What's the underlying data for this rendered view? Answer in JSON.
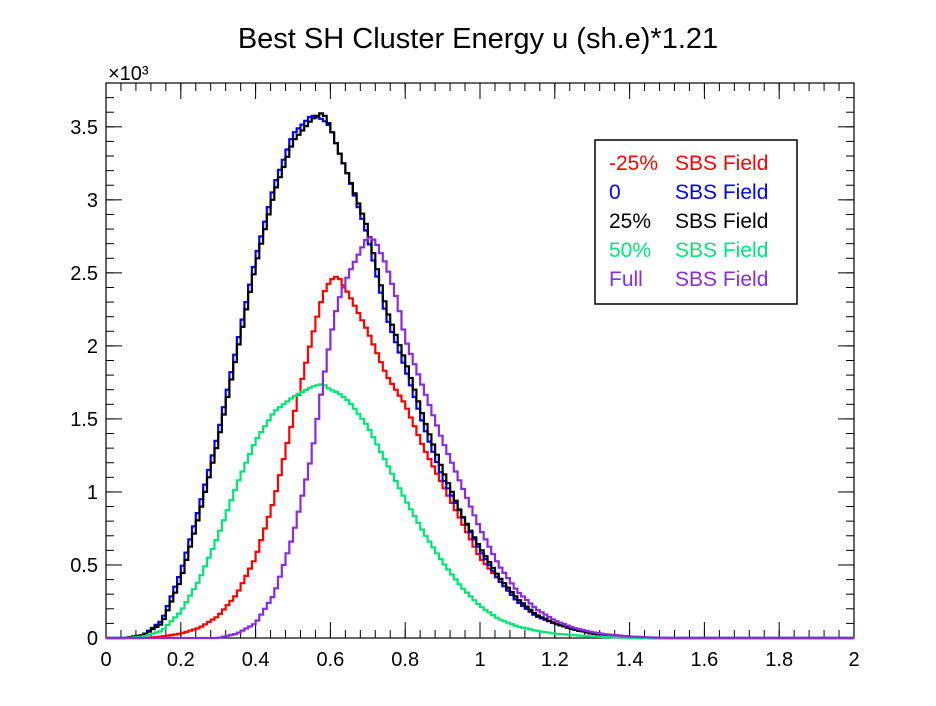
{
  "chart_data": {
    "type": "line",
    "title": "Best SH Cluster Energy u (sh.e)*1.21",
    "xlabel": "",
    "ylabel": "",
    "y_exponent_label": "×10³",
    "xlim": [
      0,
      2
    ],
    "ylim": [
      0,
      3.8
    ],
    "x_ticks": [
      "0",
      "0.2",
      "0.4",
      "0.6",
      "0.8",
      "1",
      "1.2",
      "1.4",
      "1.6",
      "1.8",
      "2"
    ],
    "y_ticks": [
      "0",
      "0.5",
      "1",
      "1.5",
      "2",
      "2.5",
      "3",
      "3.5"
    ],
    "grid": false,
    "legend_position": "top-right",
    "legend": [
      {
        "prefix": "-25%",
        "suffix": "SBS Field",
        "color": "#ff0000"
      },
      {
        "prefix": "0",
        "suffix": "SBS Field",
        "color": "#0000ff"
      },
      {
        "prefix": "25%",
        "suffix": "SBS Field",
        "color": "#000000"
      },
      {
        "prefix": "50%",
        "suffix": "SBS Field",
        "color": "#00e676"
      },
      {
        "prefix": "Full",
        "suffix": "SBS Field",
        "color": "#8a2be2"
      }
    ],
    "series": [
      {
        "name": "-25% SBS Field",
        "color": "#ff0000",
        "x": [
          0.1,
          0.15,
          0.2,
          0.25,
          0.3,
          0.35,
          0.4,
          0.45,
          0.5,
          0.55,
          0.58,
          0.6,
          0.62,
          0.65,
          0.7,
          0.75,
          0.8,
          0.85,
          0.9,
          0.95,
          1.0,
          1.05,
          1.1,
          1.15,
          1.2,
          1.25,
          1.3,
          1.35,
          1.4,
          1.45
        ],
        "y": [
          0.0,
          0.01,
          0.03,
          0.07,
          0.15,
          0.3,
          0.55,
          0.95,
          1.5,
          2.05,
          2.35,
          2.45,
          2.48,
          2.35,
          2.1,
          1.8,
          1.6,
          1.3,
          1.05,
          0.8,
          0.55,
          0.4,
          0.25,
          0.15,
          0.1,
          0.06,
          0.03,
          0.02,
          0.01,
          0.0
        ]
      },
      {
        "name": "0 SBS Field",
        "color": "#0000ff",
        "x": [
          0.05,
          0.1,
          0.15,
          0.2,
          0.25,
          0.3,
          0.35,
          0.4,
          0.45,
          0.5,
          0.55,
          0.58,
          0.6,
          0.62,
          0.65,
          0.7,
          0.75,
          0.8,
          0.85,
          0.9,
          0.95,
          1.0,
          1.05,
          1.1,
          1.15,
          1.2,
          1.25,
          1.3,
          1.35,
          1.4,
          1.45
        ],
        "y": [
          0.0,
          0.02,
          0.12,
          0.45,
          0.9,
          1.4,
          2.0,
          2.6,
          3.1,
          3.45,
          3.58,
          3.55,
          3.5,
          3.35,
          3.15,
          2.75,
          2.2,
          1.85,
          1.45,
          1.1,
          0.85,
          0.6,
          0.4,
          0.25,
          0.15,
          0.1,
          0.06,
          0.03,
          0.02,
          0.01,
          0.0
        ]
      },
      {
        "name": "25% SBS Field",
        "color": "#000000",
        "x": [
          0.05,
          0.1,
          0.15,
          0.2,
          0.25,
          0.3,
          0.35,
          0.4,
          0.45,
          0.5,
          0.55,
          0.58,
          0.6,
          0.62,
          0.65,
          0.7,
          0.75,
          0.8,
          0.85,
          0.9,
          0.95,
          1.0,
          1.05,
          1.1,
          1.15,
          1.2,
          1.25,
          1.3,
          1.35,
          1.4,
          1.45
        ],
        "y": [
          0.0,
          0.02,
          0.1,
          0.4,
          0.85,
          1.35,
          1.95,
          2.55,
          3.05,
          3.4,
          3.55,
          3.6,
          3.5,
          3.35,
          3.15,
          2.8,
          2.25,
          1.9,
          1.5,
          1.15,
          0.85,
          0.62,
          0.42,
          0.27,
          0.16,
          0.1,
          0.06,
          0.03,
          0.02,
          0.01,
          0.0
        ]
      },
      {
        "name": "50% SBS Field",
        "color": "#00e676",
        "x": [
          0.05,
          0.1,
          0.15,
          0.2,
          0.25,
          0.3,
          0.35,
          0.4,
          0.45,
          0.5,
          0.55,
          0.58,
          0.6,
          0.62,
          0.65,
          0.7,
          0.75,
          0.8,
          0.85,
          0.9,
          0.95,
          1.0,
          1.05,
          1.1,
          1.15,
          1.2,
          1.25,
          1.3,
          1.35,
          1.4
        ],
        "y": [
          0.0,
          0.01,
          0.05,
          0.18,
          0.4,
          0.7,
          1.05,
          1.35,
          1.55,
          1.65,
          1.72,
          1.74,
          1.7,
          1.68,
          1.62,
          1.45,
          1.2,
          0.95,
          0.72,
          0.52,
          0.35,
          0.22,
          0.13,
          0.08,
          0.05,
          0.03,
          0.02,
          0.01,
          0.005,
          0.0
        ]
      },
      {
        "name": "Full SBS Field",
        "color": "#8a2be2",
        "x": [
          0.3,
          0.35,
          0.4,
          0.45,
          0.5,
          0.55,
          0.58,
          0.6,
          0.62,
          0.65,
          0.68,
          0.7,
          0.72,
          0.75,
          0.78,
          0.8,
          0.85,
          0.9,
          0.95,
          1.0,
          1.05,
          1.1,
          1.15,
          1.2,
          1.25,
          1.3,
          1.35,
          1.4,
          1.45,
          1.5
        ],
        "y": [
          0.0,
          0.03,
          0.1,
          0.3,
          0.7,
          1.25,
          1.75,
          2.05,
          2.3,
          2.5,
          2.65,
          2.75,
          2.72,
          2.55,
          2.3,
          2.05,
          1.7,
          1.35,
          1.05,
          0.75,
          0.5,
          0.32,
          0.2,
          0.12,
          0.07,
          0.04,
          0.02,
          0.01,
          0.005,
          0.0
        ]
      }
    ]
  }
}
